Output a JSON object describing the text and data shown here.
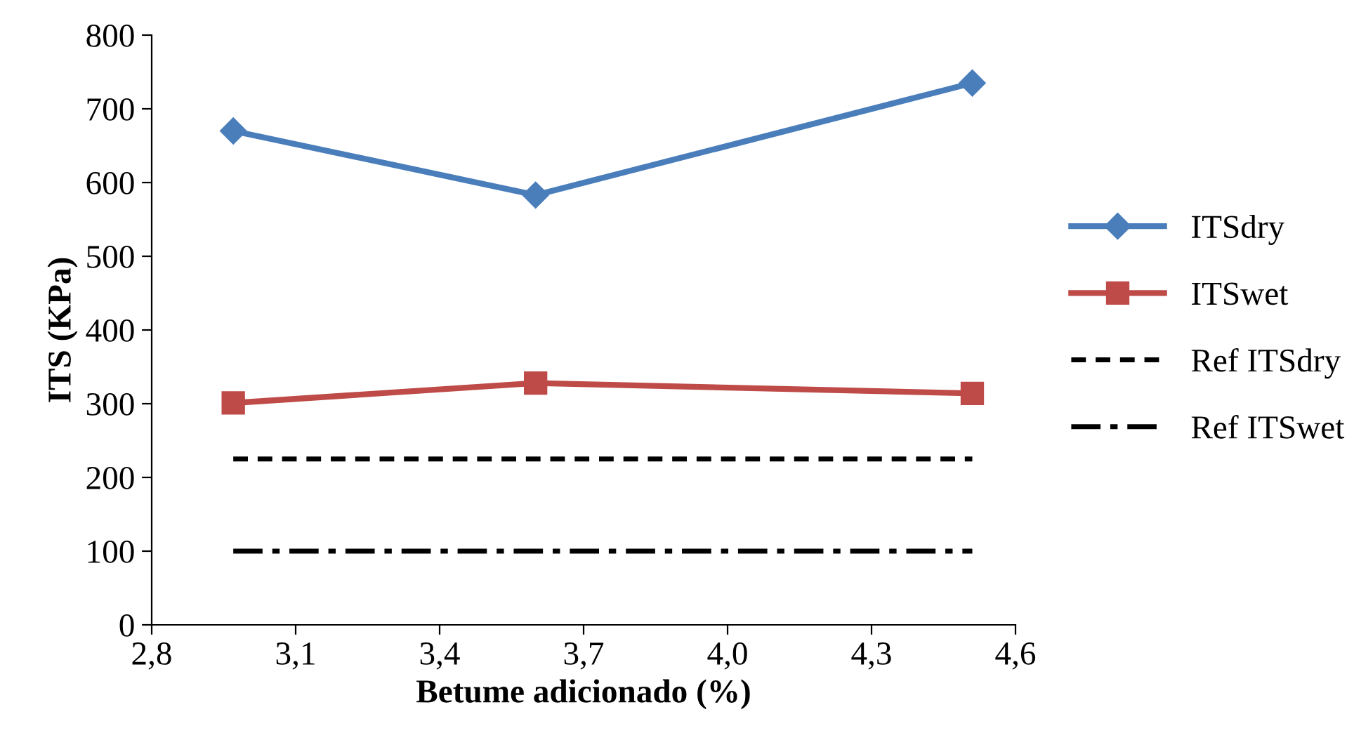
{
  "chart_data": {
    "type": "line",
    "xlabel": "Betume adicionado (%)",
    "ylabel": "ITS (KPa)",
    "x": [
      2.97,
      3.6,
      4.51
    ],
    "series": [
      {
        "name": "ITSdry",
        "color": "#4a7ebb",
        "values": [
          670,
          583,
          735
        ],
        "marker": "diamond",
        "line_style": "solid"
      },
      {
        "name": "ITSwet",
        "color": "#be4b48",
        "values": [
          301,
          328,
          314
        ],
        "marker": "square",
        "line_style": "solid"
      },
      {
        "name": "Ref ITSdry",
        "color": "#000000",
        "values": [
          225,
          225,
          225
        ],
        "marker": "none",
        "line_style": "dashed"
      },
      {
        "name": "Ref ITSwet",
        "color": "#000000",
        "values": [
          100,
          100,
          100
        ],
        "marker": "none",
        "line_style": "dashdot"
      }
    ],
    "xlim": [
      2.8,
      4.6
    ],
    "xticks": [
      {
        "value": 2.8,
        "label": "2,8"
      },
      {
        "value": 3.1,
        "label": "3,1"
      },
      {
        "value": 3.4,
        "label": "3,4"
      },
      {
        "value": 3.7,
        "label": "3,7"
      },
      {
        "value": 4.0,
        "label": "4,0"
      },
      {
        "value": 4.3,
        "label": "4,3"
      },
      {
        "value": 4.6,
        "label": "4,6"
      }
    ],
    "ylim": [
      0,
      800
    ],
    "yticks": [
      0,
      100,
      200,
      300,
      400,
      500,
      600,
      700,
      800
    ],
    "grid": false,
    "legend": "right"
  }
}
